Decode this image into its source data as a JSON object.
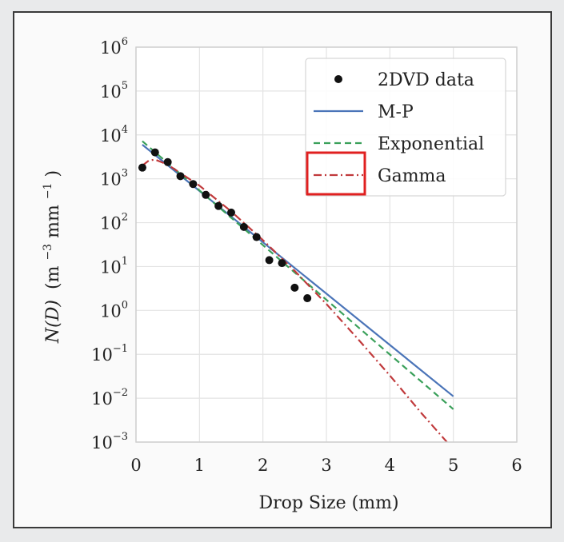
{
  "chart_data": {
    "type": "line",
    "title": "",
    "xlabel": "Drop Size (mm)",
    "ylabel_parts": {
      "func": "N(D)",
      "unit_open": "(m",
      "exp1": "−3",
      "unit_mid": "mm",
      "exp2": "−1",
      "unit_close": ")"
    },
    "xlim": [
      0,
      6
    ],
    "ylim_log10": [
      -3,
      6
    ],
    "x_ticks": [
      "0",
      "1",
      "2",
      "3",
      "4",
      "5",
      "6"
    ],
    "y_ticks": [
      {
        "base": "10",
        "exp": "6"
      },
      {
        "base": "10",
        "exp": "5"
      },
      {
        "base": "10",
        "exp": "4"
      },
      {
        "base": "10",
        "exp": "3"
      },
      {
        "base": "10",
        "exp": "2"
      },
      {
        "base": "10",
        "exp": "1"
      },
      {
        "base": "10",
        "exp": "0"
      },
      {
        "base": "10",
        "exp": "−1"
      },
      {
        "base": "10",
        "exp": "−2"
      },
      {
        "base": "10",
        "exp": "−3"
      }
    ],
    "y_tick_values_log10": [
      6,
      5,
      4,
      3,
      2,
      1,
      0,
      -1,
      -2,
      -3
    ],
    "grid": true,
    "legend_position": "top-right",
    "series": [
      {
        "name": "2DVD data",
        "kind": "scatter",
        "color": "#111111",
        "x": [
          0.1,
          0.3,
          0.5,
          0.7,
          0.9,
          1.1,
          1.3,
          1.5,
          1.7,
          1.9,
          2.1,
          2.3,
          2.5,
          2.7
        ],
        "y": [
          1800,
          4000,
          2400,
          1150,
          760,
          430,
          240,
          170,
          80,
          47,
          14,
          12,
          3.3,
          1.9
        ]
      },
      {
        "name": "M-P",
        "kind": "line",
        "style": "solid",
        "color": "#4a74b8",
        "x": [
          0.1,
          5.0
        ],
        "y": [
          6000,
          0.011
        ]
      },
      {
        "name": "Exponential",
        "kind": "line",
        "style": "dashed",
        "color": "#3aa05a",
        "x": [
          0.1,
          5.0
        ],
        "y": [
          7200,
          0.0056
        ]
      },
      {
        "name": "Gamma",
        "kind": "line",
        "style": "dashdot",
        "color": "#c0393b",
        "x": [
          0.1,
          0.2,
          0.3,
          0.5,
          1.0,
          1.5,
          2.0,
          2.5,
          3.0,
          3.5,
          4.0,
          4.5,
          4.9
        ],
        "y": [
          2000,
          2600,
          2750,
          2100,
          700,
          180,
          40,
          8.0,
          1.4,
          0.22,
          0.033,
          0.0045,
          0.001
        ]
      }
    ],
    "highlight": "Gamma"
  }
}
